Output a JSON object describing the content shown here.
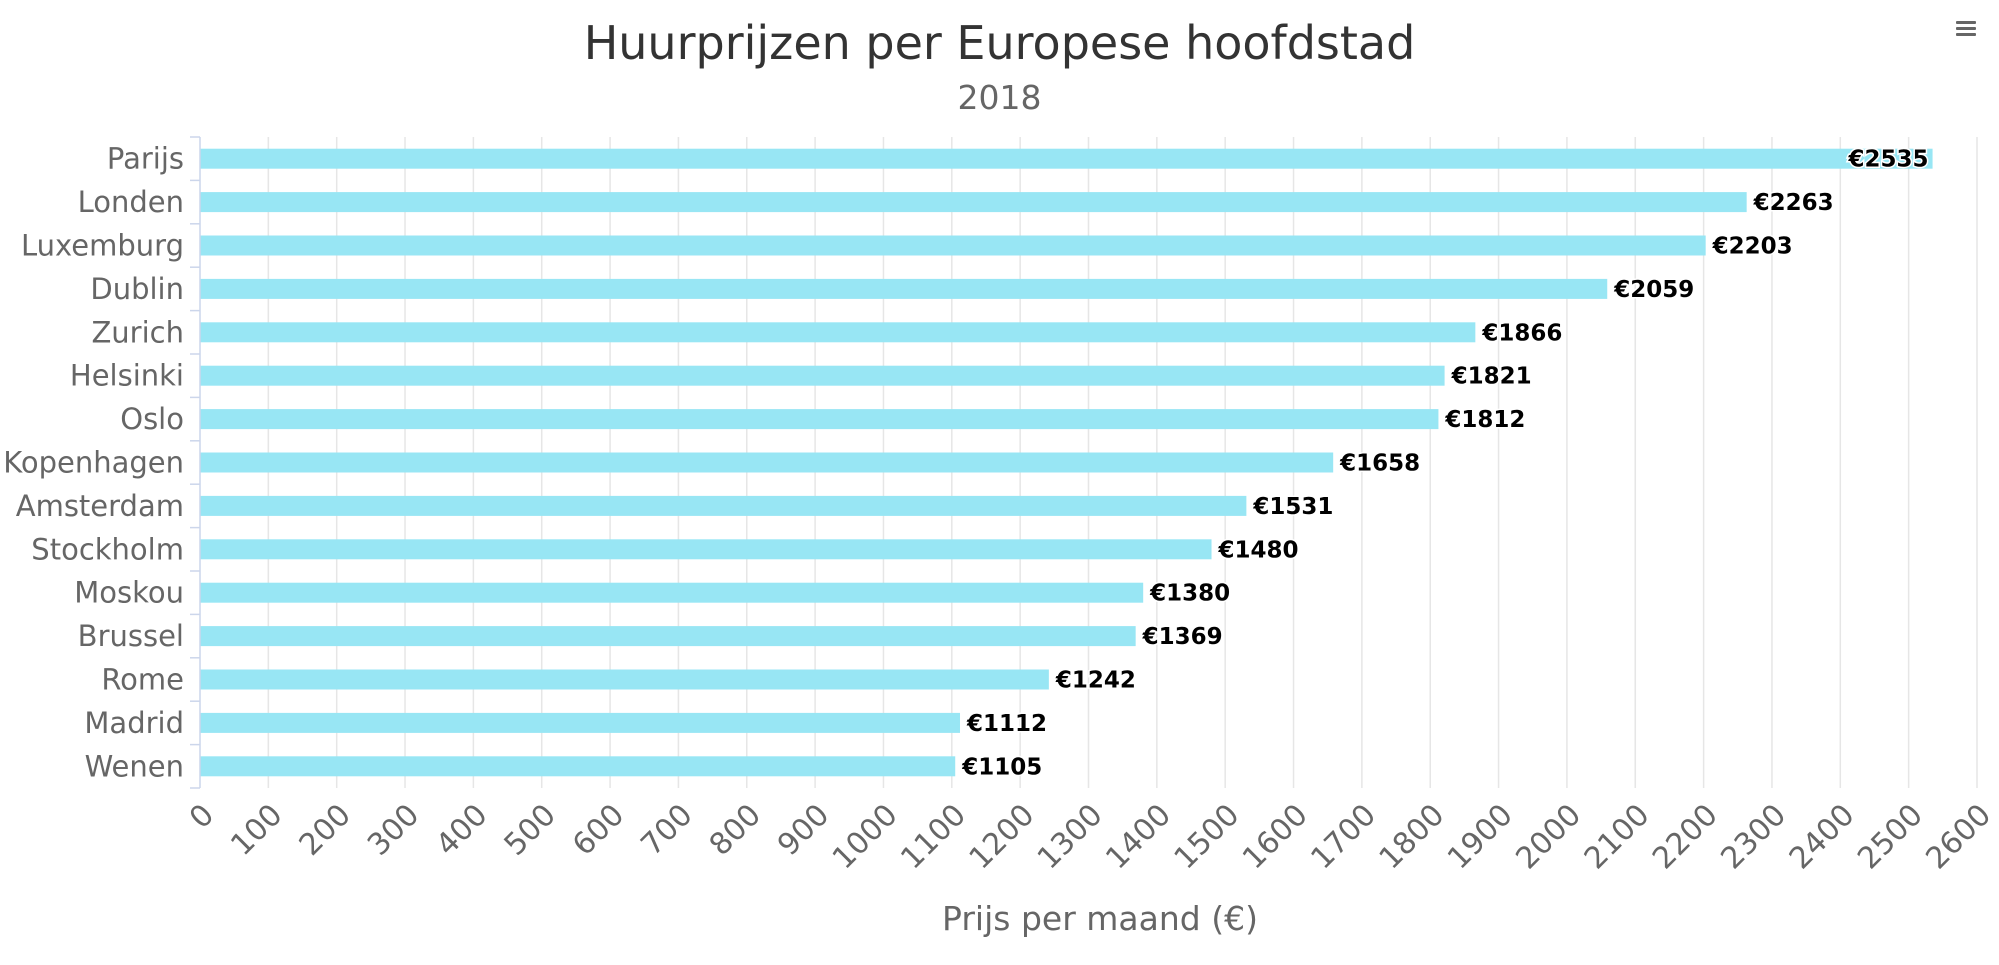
{
  "chart_data": {
    "type": "bar",
    "orientation": "horizontal",
    "title": "Huurprijzen per Europese hoofdstad",
    "subtitle": "2018",
    "xlabel": "Prijs per maand (€)",
    "ylabel": "",
    "xlim": [
      0,
      2600
    ],
    "x_ticks": [
      0,
      100,
      200,
      300,
      400,
      500,
      600,
      700,
      800,
      900,
      1000,
      1100,
      1200,
      1300,
      1400,
      1500,
      1600,
      1700,
      1800,
      1900,
      2000,
      2100,
      2200,
      2300,
      2400,
      2500,
      2600
    ],
    "grid": true,
    "legend": "none",
    "bar_color": "#98e6f4",
    "label_prefix": "€",
    "categories": [
      "Parijs",
      "Londen",
      "Luxemburg",
      "Dublin",
      "Zurich",
      "Helsinki",
      "Oslo",
      "Kopenhagen",
      "Amsterdam",
      "Stockholm",
      "Moskou",
      "Brussel",
      "Rome",
      "Madrid",
      "Wenen"
    ],
    "values": [
      2535,
      2263,
      2203,
      2059,
      1866,
      1821,
      1812,
      1658,
      1531,
      1480,
      1380,
      1369,
      1242,
      1112,
      1105
    ]
  },
  "menu": {
    "icon": "hamburger-menu-icon"
  }
}
